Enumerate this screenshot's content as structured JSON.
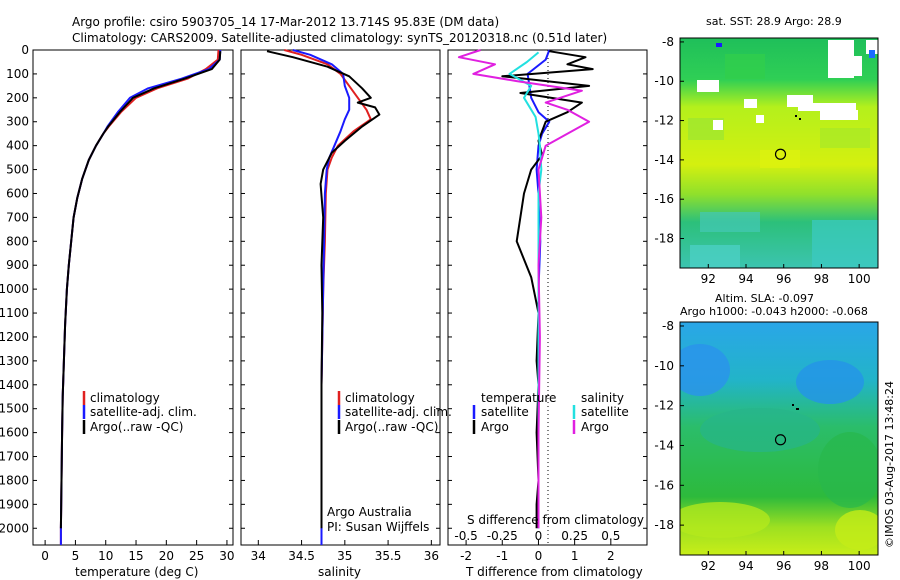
{
  "header": {
    "title_line1": "Argo profile: csiro 5903705_14 17-Mar-2012 13.714S 95.83E (DM data)",
    "title_line2": "Climatology: CARS2009. Satellite-adjusted climatology: synTS_20120318.nc (0.51d later)"
  },
  "footer": {
    "credit": "©IMOS 03-Aug-2017 13:48:24",
    "argo_credit": "Argo Australia",
    "pi_credit": "PI: Susan Wijffels"
  },
  "colors": {
    "climatology": "#e02020",
    "satellite": "#1a1aff",
    "argo": "#000000",
    "sal_satellite": "#22e0e0",
    "sal_argo": "#e020e0"
  },
  "chart_data": [
    {
      "id": "temperature",
      "type": "line",
      "xlabel": "temperature (deg C)",
      "ylabel": "",
      "xlim": [
        -2,
        31
      ],
      "ylim": [
        2070,
        0
      ],
      "xticks": [
        0,
        5,
        10,
        15,
        20,
        25,
        30
      ],
      "yticks": [
        0,
        100,
        200,
        300,
        400,
        500,
        600,
        700,
        800,
        900,
        1000,
        1100,
        1200,
        1300,
        1400,
        1500,
        1600,
        1700,
        1800,
        1900,
        2000
      ],
      "legend": [
        "climatology",
        "satellite-adj. clim.",
        "Argo(..raw -QC)"
      ],
      "series": [
        {
          "name": "climatology",
          "color": "#e02020",
          "x": [
            28.6,
            28.5,
            26.5,
            23.5,
            18.5,
            15.0,
            12.5,
            10.5,
            9.6,
            8.4,
            7.2,
            6.1,
            5.3,
            4.7,
            4.3,
            3.9,
            3.6,
            3.3,
            3.1,
            2.9,
            2.8,
            2.7,
            2.6,
            2.6
          ],
          "y": [
            0,
            40,
            80,
            120,
            160,
            200,
            260,
            320,
            350,
            400,
            460,
            540,
            620,
            700,
            800,
            900,
            1000,
            1150,
            1300,
            1450,
            1600,
            1800,
            2000,
            2070
          ]
        },
        {
          "name": "satellite-adj. clim.",
          "color": "#1a1aff",
          "x": [
            28.9,
            28.8,
            27.0,
            22.5,
            17.0,
            14.0,
            12.0,
            10.3,
            9.6,
            8.4,
            7.2,
            6.1,
            5.3,
            4.7,
            4.3,
            3.9,
            3.6,
            3.3,
            3.1,
            2.9,
            2.8,
            2.7,
            2.6,
            2.6
          ],
          "y": [
            0,
            40,
            80,
            120,
            160,
            200,
            260,
            320,
            350,
            400,
            460,
            540,
            620,
            700,
            800,
            900,
            1000,
            1150,
            1300,
            1450,
            1600,
            1800,
            2000,
            2070
          ]
        },
        {
          "name": "Argo(..raw -QC)",
          "color": "#000000",
          "x": [
            28.9,
            28.8,
            27.5,
            23.0,
            18.0,
            14.5,
            12.3,
            10.4,
            9.6,
            8.4,
            7.2,
            6.1,
            5.3,
            4.7,
            4.3,
            3.9,
            3.6,
            3.3,
            3.1,
            2.9,
            2.8,
            2.7,
            2.6
          ],
          "y": [
            5,
            40,
            80,
            120,
            160,
            200,
            260,
            320,
            350,
            400,
            460,
            540,
            620,
            700,
            800,
            900,
            1000,
            1150,
            1300,
            1450,
            1600,
            1800,
            2000
          ]
        }
      ]
    },
    {
      "id": "salinity",
      "type": "line",
      "xlabel": "salinity",
      "ylabel": "",
      "xlim": [
        33.8,
        36.1
      ],
      "ylim": [
        2070,
        0
      ],
      "xticks": [
        34,
        34.5,
        35,
        35.5,
        36
      ],
      "legend": [
        "climatology",
        "satellite-adj. clim.",
        "Argo(..raw -QC)"
      ],
      "series": [
        {
          "name": "climatology",
          "color": "#e02020",
          "x": [
            34.3,
            34.5,
            34.8,
            34.95,
            35.05,
            35.15,
            35.25,
            35.3,
            35.1,
            34.92,
            34.85,
            34.8,
            34.78,
            34.77,
            34.75,
            34.73,
            34.73,
            34.73
          ],
          "y": [
            0,
            20,
            60,
            100,
            150,
            200,
            250,
            290,
            340,
            400,
            450,
            500,
            600,
            800,
            1000,
            1400,
            1800,
            2070
          ]
        },
        {
          "name": "satellite-adj. clim.",
          "color": "#1a1aff",
          "x": [
            34.4,
            34.6,
            34.85,
            34.98,
            35.0,
            35.05,
            35.05,
            35.0,
            34.95,
            34.88,
            34.82,
            34.79,
            34.77,
            34.76,
            34.75,
            34.73,
            34.73,
            34.73
          ],
          "y": [
            0,
            20,
            60,
            100,
            150,
            200,
            250,
            290,
            340,
            400,
            450,
            500,
            600,
            800,
            1000,
            1400,
            1800,
            2070
          ]
        },
        {
          "name": "Argo(..raw -QC)",
          "color": "#000000",
          "x": [
            34.1,
            34.4,
            34.8,
            35.05,
            35.2,
            35.3,
            35.15,
            35.35,
            35.4,
            35.2,
            35.0,
            34.85,
            34.75,
            34.72,
            34.75,
            34.73,
            34.74,
            34.73,
            34.73,
            34.73
          ],
          "y": [
            5,
            30,
            70,
            110,
            160,
            200,
            220,
            240,
            270,
            320,
            380,
            430,
            500,
            560,
            700,
            900,
            1100,
            1400,
            1800,
            2000
          ]
        }
      ]
    },
    {
      "id": "differences",
      "type": "line",
      "xlabel": "T difference from climatology",
      "xlabel_top": "S difference from climatology",
      "xlim": [
        -2.5,
        3
      ],
      "ylim": [
        2070,
        0
      ],
      "xticks": [
        -2,
        -1,
        0,
        1,
        2
      ],
      "xticks_s": [
        -0.5,
        -0.25,
        0,
        0.25,
        0.5
      ],
      "legend_temperature": [
        "temperature",
        "satellite",
        "Argo"
      ],
      "legend_salinity": [
        "salinity",
        "satellite",
        "Argo"
      ],
      "series": [
        {
          "name": "T satellite",
          "color": "#1a1aff",
          "x": [
            0.3,
            0.2,
            -0.3,
            -0.2,
            0.0,
            0.3,
            0.1,
            0.0,
            -0.05,
            0.0,
            0.05,
            0.0,
            0.0,
            0.0,
            0.0,
            0.0,
            0.0
          ],
          "y": [
            0,
            40,
            100,
            200,
            260,
            300,
            350,
            400,
            500,
            600,
            800,
            1000,
            1200,
            1400,
            1600,
            1800,
            2000
          ]
        },
        {
          "name": "T Argo",
          "color": "#000000",
          "x": [
            0.3,
            1.3,
            0.8,
            1.5,
            -1.0,
            1.4,
            -0.5,
            1.2,
            0.8,
            0.2,
            0.0,
            0.1,
            -0.2,
            -0.4,
            -0.6,
            -0.2,
            0.0,
            -0.05,
            0.0,
            -0.05,
            0.0,
            -0.05,
            -0.05
          ],
          "y": [
            5,
            30,
            60,
            80,
            110,
            150,
            180,
            220,
            260,
            300,
            380,
            440,
            500,
            600,
            800,
            950,
            1100,
            1300,
            1400,
            1600,
            1800,
            1900,
            2000
          ]
        },
        {
          "name": "S satellite",
          "color": "#22e0e0",
          "x": [
            0.0,
            -0.08,
            -0.2,
            -0.05,
            -0.1,
            -0.02,
            0.0,
            0.01,
            0.02,
            0.0,
            0.0,
            0.0,
            0.0,
            0.0,
            0.0
          ],
          "y": [
            10,
            50,
            100,
            150,
            200,
            280,
            350,
            400,
            500,
            600,
            800,
            1000,
            1400,
            1800,
            2000
          ]
        },
        {
          "name": "S Argo",
          "color": "#e020e0",
          "x": [
            -0.4,
            -0.55,
            -0.3,
            -0.45,
            -0.15,
            0.3,
            0.15,
            0.05,
            0.2,
            0.35,
            0.05,
            0.0,
            0.02,
            0.0,
            0.01,
            0.0,
            0.0
          ],
          "y": [
            0,
            30,
            60,
            100,
            130,
            170,
            200,
            220,
            250,
            300,
            400,
            500,
            700,
            900,
            1200,
            1600,
            2000
          ]
        }
      ]
    },
    {
      "id": "sst_map",
      "type": "heatmap",
      "title": "sat. SST: 28.9 Argo: 28.9",
      "xlim": [
        90.5,
        101
      ],
      "ylim": [
        -19.5,
        -7.8
      ],
      "xticks": [
        92,
        94,
        96,
        98,
        100
      ],
      "yticks": [
        -8,
        -10,
        -12,
        -14,
        -16,
        -18
      ],
      "marker": {
        "lon": 95.83,
        "lat": -13.714
      }
    },
    {
      "id": "sla_map",
      "type": "heatmap",
      "title_line1": "Altim. SLA: -0.097",
      "title_line2": "Argo h1000: -0.043 h2000: -0.068",
      "xlim": [
        90.5,
        101
      ],
      "ylim": [
        -19.5,
        -7.8
      ],
      "xticks": [
        92,
        94,
        96,
        98,
        100
      ],
      "yticks": [
        -8,
        -10,
        -12,
        -14,
        -16,
        -18
      ],
      "marker": {
        "lon": 95.83,
        "lat": -13.714
      }
    }
  ]
}
